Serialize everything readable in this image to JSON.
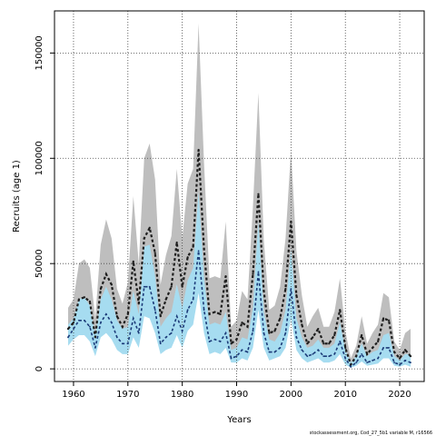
{
  "chart_data": {
    "type": "line",
    "title": "",
    "xlabel": "Years",
    "ylabel": "Recruits (age 1)",
    "xlim": [
      1956.5,
      2024.5
    ],
    "ylim": [
      -6000,
      170000
    ],
    "x_ticks": [
      1960,
      1970,
      1980,
      1990,
      2000,
      2010,
      2020
    ],
    "y_ticks": [
      0,
      50000,
      100000,
      150000
    ],
    "x_tick_labels": [
      "1960",
      "1970",
      "1980",
      "1990",
      "2000",
      "2010",
      "2020"
    ],
    "y_tick_labels": [
      "0",
      "50000",
      "100000",
      "150000"
    ],
    "grid": true,
    "legend": "none",
    "caption": "stockassessment.org, Cod_27_5b1 variable M, r16566",
    "colors": {
      "grey_band": "#bebebe",
      "blue_band": "#a6dcf0",
      "dark_line": "#1e1e1e",
      "blue_line": "#1b3a78"
    },
    "x": [
      1959,
      1960,
      1961,
      1962,
      1963,
      1964,
      1965,
      1966,
      1967,
      1968,
      1969,
      1970,
      1971,
      1972,
      1973,
      1974,
      1975,
      1976,
      1977,
      1978,
      1979,
      1980,
      1981,
      1982,
      1983,
      1984,
      1985,
      1986,
      1987,
      1988,
      1989,
      1990,
      1991,
      1992,
      1993,
      1994,
      1995,
      1996,
      1997,
      1998,
      1999,
      2000,
      2001,
      2002,
      2003,
      2004,
      2005,
      2006,
      2007,
      2008,
      2009,
      2010,
      2011,
      2012,
      2013,
      2014,
      2015,
      2016,
      2017,
      2018,
      2019,
      2020,
      2021,
      2022
    ],
    "series": [
      {
        "values": [
          19000,
          22000,
          33000,
          34000,
          32000,
          15000,
          38000,
          45000,
          40000,
          25000,
          20000,
          26000,
          51000,
          31000,
          62000,
          67000,
          55000,
          25000,
          33000,
          39000,
          60000,
          39000,
          53000,
          58000,
          104000,
          57000,
          26000,
          27000,
          26000,
          44000,
          12000,
          14000,
          22000,
          20000,
          45000,
          83000,
          37000,
          17000,
          18000,
          24000,
          38000,
          70000,
          35000,
          21000,
          12000,
          15000,
          19000,
          12000,
          12000,
          16000,
          28000,
          10000,
          2000,
          6000,
          16000,
          7000,
          10000,
          13000,
          24000,
          23000,
          8000,
          5000,
          9000,
          6000
        ],
        "lower": [
          14000,
          17000,
          24000,
          25000,
          23000,
          11000,
          28000,
          33000,
          29000,
          18000,
          15000,
          19000,
          37000,
          22000,
          43000,
          45000,
          36000,
          16000,
          22000,
          26000,
          40000,
          25000,
          34000,
          37000,
          63000,
          34000,
          15000,
          16000,
          15000,
          27000,
          7000,
          8000,
          13000,
          12000,
          27000,
          54000,
          23000,
          10000,
          11000,
          15000,
          24000,
          45000,
          21000,
          12000,
          7000,
          8000,
          11000,
          7000,
          7000,
          9000,
          16000,
          5000,
          1000,
          3000,
          8000,
          3000,
          5000,
          7000,
          13000,
          12000,
          4000,
          2000,
          4000,
          2500
        ],
        "upper": [
          29000,
          33000,
          50000,
          52000,
          48000,
          24000,
          59000,
          71000,
          62000,
          38000,
          31000,
          41000,
          82000,
          50000,
          100000,
          107000,
          90000,
          40000,
          54000,
          63000,
          95000,
          62000,
          88000,
          95000,
          164000,
          98000,
          43000,
          44000,
          43000,
          70000,
          20000,
          23000,
          37000,
          33000,
          77000,
          131000,
          61000,
          28000,
          30000,
          39000,
          62000,
          104000,
          56000,
          35000,
          20000,
          25000,
          29000,
          20000,
          20000,
          27000,
          43000,
          18000,
          5000,
          11000,
          25000,
          12000,
          17000,
          21000,
          36000,
          34000,
          13000,
          9000,
          17000,
          19000
        ]
      },
      {
        "values": [
          15000,
          19000,
          23000,
          23000,
          20000,
          10000,
          22000,
          26000,
          22000,
          15000,
          12000,
          12000,
          24000,
          17000,
          39000,
          39000,
          28000,
          12000,
          15000,
          17000,
          25000,
          18000,
          28000,
          33000,
          56000,
          28000,
          13000,
          14000,
          13000,
          17000,
          5000,
          6000,
          9000,
          8000,
          18000,
          46000,
          17000,
          8000,
          8000,
          10000,
          17000,
          38000,
          15000,
          9000,
          6000,
          7000,
          9000,
          6000,
          6000,
          7000,
          13000,
          5000,
          1000,
          3000,
          7000,
          3000,
          4000,
          5000,
          10000,
          10000,
          3000,
          2000,
          4000,
          3000
        ],
        "lower": [
          11000,
          14000,
          16000,
          16000,
          13000,
          6000,
          15000,
          17000,
          14000,
          9000,
          7000,
          7000,
          15000,
          10000,
          25000,
          24000,
          17000,
          7000,
          9000,
          10000,
          16000,
          10000,
          18000,
          21000,
          36000,
          17000,
          7000,
          8000,
          7000,
          10000,
          3000,
          3000,
          5000,
          4000,
          10000,
          28000,
          10000,
          4000,
          5000,
          6000,
          10000,
          24000,
          9000,
          5000,
          3000,
          4000,
          5000,
          3000,
          3000,
          4000,
          7000,
          2000,
          500,
          1500,
          3500,
          1500,
          2000,
          2500,
          5000,
          5000,
          1500,
          1000,
          2000,
          1000
        ],
        "upper": [
          21000,
          24000,
          33000,
          34000,
          30000,
          16000,
          33000,
          39000,
          33000,
          23000,
          19000,
          20000,
          37000,
          26000,
          58000,
          59000,
          44000,
          20000,
          24000,
          27000,
          40000,
          29000,
          42000,
          48000,
          84000,
          43000,
          21000,
          22000,
          21000,
          27000,
          9000,
          10000,
          15000,
          14000,
          29000,
          70000,
          27000,
          14000,
          13000,
          17000,
          28000,
          57000,
          24000,
          15000,
          10000,
          11000,
          14000,
          10000,
          10000,
          12000,
          22000,
          9000,
          3000,
          6000,
          12000,
          6000,
          8000,
          9000,
          16000,
          17000,
          6000,
          4000,
          7000,
          7000
        ]
      }
    ]
  }
}
